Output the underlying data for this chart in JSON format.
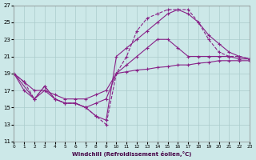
{
  "xlabel": "Windchill (Refroidissement éolien,°C)",
  "background_color": "#cce8e8",
  "grid_color": "#aacccc",
  "line_color": "#882288",
  "xlim": [
    0,
    23
  ],
  "ylim": [
    11,
    27
  ],
  "xticks": [
    0,
    1,
    2,
    3,
    4,
    5,
    6,
    7,
    8,
    9,
    10,
    11,
    12,
    13,
    14,
    15,
    16,
    17,
    18,
    19,
    20,
    21,
    22,
    23
  ],
  "yticks": [
    11,
    13,
    15,
    17,
    19,
    21,
    23,
    25,
    27
  ],
  "lines": [
    {
      "x": [
        0,
        1,
        2,
        3,
        4,
        5,
        6,
        7,
        8,
        9,
        10,
        11,
        12,
        13,
        14,
        15,
        16,
        17,
        18,
        19,
        20,
        21,
        22,
        23
      ],
      "y": [
        19,
        18,
        17,
        17,
        16.5,
        16,
        16,
        16,
        16.5,
        17,
        19,
        19.2,
        19.4,
        19.5,
        19.7,
        19.8,
        20.0,
        20.0,
        20.2,
        20.3,
        20.5,
        20.5,
        20.5,
        20.5
      ],
      "linestyle": "-",
      "dashed": false
    },
    {
      "x": [
        0,
        1,
        2,
        3,
        4,
        5,
        6,
        7,
        8,
        9,
        10,
        11,
        12,
        13,
        14,
        15,
        16,
        17,
        18,
        19,
        20,
        21,
        22,
        23
      ],
      "y": [
        19,
        17,
        16,
        17,
        16,
        15.5,
        15.5,
        15,
        15.5,
        16,
        19,
        20,
        21,
        22,
        23,
        23,
        22,
        21,
        21,
        21,
        21,
        21,
        20.7,
        20.7
      ],
      "linestyle": "-",
      "dashed": false
    },
    {
      "x": [
        0,
        1,
        2,
        3,
        4,
        5,
        6,
        7,
        8,
        9,
        10,
        11,
        12,
        13,
        14,
        15,
        16,
        17,
        18,
        19,
        20,
        21,
        22,
        23
      ],
      "y": [
        19,
        18,
        16,
        17.5,
        16,
        15.5,
        15.5,
        15,
        14,
        13,
        19,
        21,
        24,
        25.5,
        26,
        26.5,
        26.5,
        26.5,
        25,
        23,
        21.5,
        21,
        21,
        20.7
      ],
      "linestyle": "--",
      "dashed": true
    },
    {
      "x": [
        0,
        2,
        3,
        4,
        5,
        6,
        7,
        8,
        9,
        10,
        11,
        12,
        13,
        14,
        15,
        16,
        17,
        18,
        19,
        20,
        21,
        22,
        23
      ],
      "y": [
        19,
        16,
        17.5,
        16,
        15.5,
        15.5,
        15,
        14,
        13.5,
        21,
        22,
        23,
        24,
        25,
        26,
        26.5,
        26,
        25,
        23.5,
        22.5,
        21.5,
        21,
        20.7
      ],
      "linestyle": "-",
      "dashed": false
    }
  ]
}
